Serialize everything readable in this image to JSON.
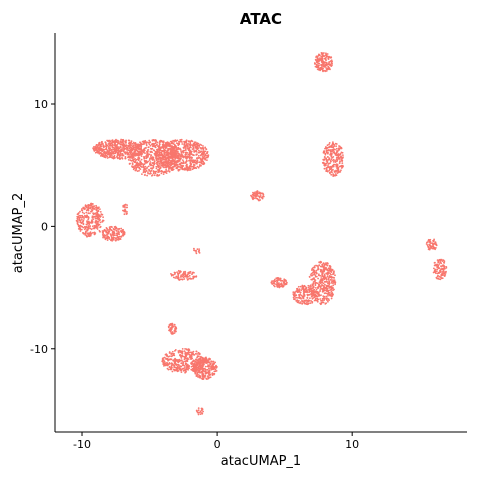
{
  "chart_data": {
    "type": "scatter",
    "title": "ATAC",
    "xlabel": "atacUMAP_1",
    "ylabel": "atacUMAP_2",
    "xlim": [
      -12,
      18.5
    ],
    "ylim": [
      -16.8,
      15.8
    ],
    "x_ticks": [
      -10,
      0,
      10
    ],
    "y_ticks": [
      -10,
      0,
      10
    ],
    "x_tick_labels": [
      "-10",
      "0",
      "10"
    ],
    "y_tick_labels": [
      "-10",
      "0",
      "10"
    ],
    "grid": false,
    "legend": "none",
    "point_color": "#F8766D",
    "clusters": [
      {
        "cx": 7.9,
        "cy": 13.4,
        "rx": 0.7,
        "ry": 0.8,
        "n": 180
      },
      {
        "cx": -7.3,
        "cy": 6.3,
        "rx": 1.9,
        "ry": 0.8,
        "n": 500
      },
      {
        "cx": -4.7,
        "cy": 5.6,
        "rx": 1.9,
        "ry": 1.5,
        "n": 600
      },
      {
        "cx": -2.6,
        "cy": 5.8,
        "rx": 2.0,
        "ry": 1.3,
        "n": 700
      },
      {
        "cx": 8.6,
        "cy": 5.5,
        "rx": 0.8,
        "ry": 1.4,
        "n": 260
      },
      {
        "cx": 3.0,
        "cy": 2.5,
        "rx": 0.5,
        "ry": 0.4,
        "n": 60
      },
      {
        "cx": -9.4,
        "cy": 0.5,
        "rx": 1.0,
        "ry": 1.4,
        "n": 300
      },
      {
        "cx": -7.7,
        "cy": -0.6,
        "rx": 0.9,
        "ry": 0.6,
        "n": 160
      },
      {
        "cx": -6.8,
        "cy": 1.4,
        "rx": 0.2,
        "ry": 0.5,
        "n": 25
      },
      {
        "cx": -1.5,
        "cy": -2.0,
        "rx": 0.3,
        "ry": 0.3,
        "n": 12
      },
      {
        "cx": -2.5,
        "cy": -4.0,
        "rx": 1.0,
        "ry": 0.4,
        "n": 90
      },
      {
        "cx": 15.9,
        "cy": -1.5,
        "rx": 0.4,
        "ry": 0.5,
        "n": 60
      },
      {
        "cx": 16.5,
        "cy": -3.5,
        "rx": 0.5,
        "ry": 0.9,
        "n": 110
      },
      {
        "cx": 6.5,
        "cy": -5.6,
        "rx": 0.9,
        "ry": 0.8,
        "n": 180
      },
      {
        "cx": 7.8,
        "cy": -4.6,
        "rx": 1.0,
        "ry": 1.8,
        "n": 400
      },
      {
        "cx": 4.6,
        "cy": -4.6,
        "rx": 0.6,
        "ry": 0.4,
        "n": 90
      },
      {
        "cx": -3.3,
        "cy": -8.3,
        "rx": 0.3,
        "ry": 0.5,
        "n": 50
      },
      {
        "cx": -2.5,
        "cy": -11.0,
        "rx": 1.6,
        "ry": 1.0,
        "n": 380
      },
      {
        "cx": -0.9,
        "cy": -11.6,
        "rx": 0.9,
        "ry": 0.9,
        "n": 260
      },
      {
        "cx": -1.3,
        "cy": -15.1,
        "rx": 0.3,
        "ry": 0.3,
        "n": 20
      }
    ]
  }
}
